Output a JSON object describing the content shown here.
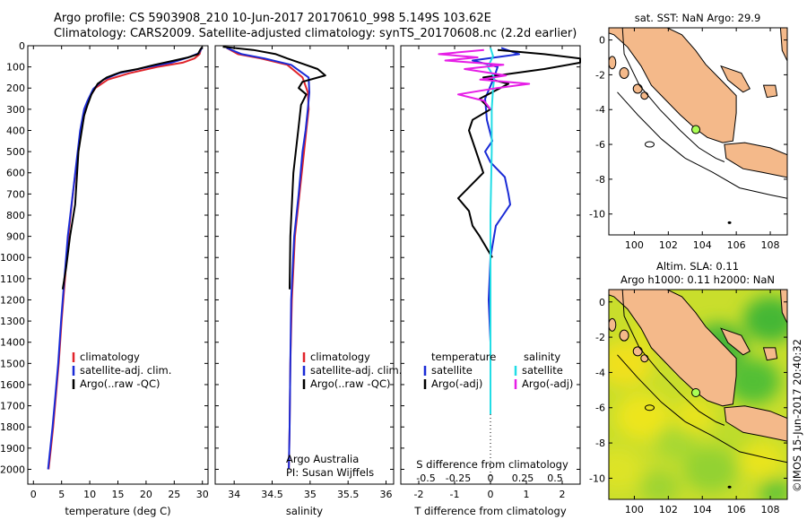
{
  "header": {
    "line1": "Argo profile: CS 5903908_210 10-Jun-2017 20170610_998 5.149S 103.62E",
    "line2": "Climatology: CARS2009. Satellite-adjusted climatology: synTS_20170608.nc (2.2d earlier)"
  },
  "footer": {
    "stamp": "©IMOS 15-Jun-2017 20:40:32"
  },
  "colors": {
    "clim": "#e0242b",
    "sat": "#1a2bd6",
    "argo": "#000000",
    "sal_sat": "#22dde6",
    "sal_argo": "#e61ee6",
    "land": "#f4b98a",
    "ocean_map": "#ffffff"
  },
  "chart_data": [
    {
      "type": "line",
      "name": "temperature",
      "xlabel": "temperature (deg C)",
      "xlim": [
        -1,
        31
      ],
      "ylim": [
        0,
        2070
      ],
      "xticks": [
        "0",
        "5",
        "10",
        "15",
        "20",
        "25",
        "30"
      ],
      "xtick_values": [
        0,
        5,
        10,
        15,
        20,
        25,
        30
      ],
      "yticks": [
        "0",
        "100",
        "200",
        "300",
        "400",
        "500",
        "600",
        "700",
        "800",
        "900",
        "1000",
        "1100",
        "1200",
        "1300",
        "1400",
        "1500",
        "1600",
        "1700",
        "1800",
        "1900",
        "2000"
      ],
      "ytick_values": [
        0,
        100,
        200,
        300,
        400,
        500,
        600,
        700,
        800,
        900,
        1000,
        1100,
        1200,
        1300,
        1400,
        1500,
        1600,
        1700,
        1800,
        1900,
        2000
      ],
      "legend": [
        "climatology",
        "satellite-adj. clim.",
        "Argo(..raw -QC)"
      ],
      "series": [
        {
          "name": "climatology",
          "color": "#e0242b",
          "x": [
            29.8,
            29.5,
            28.6,
            26.5,
            22.0,
            17.0,
            13.2,
            11.0,
            9.8,
            9.2,
            8.5,
            7.7,
            7.0,
            6.2,
            5.6,
            5.0,
            4.5,
            4.0,
            3.5,
            3.1,
            2.7
          ],
          "y": [
            10,
            40,
            60,
            80,
            100,
            130,
            160,
            200,
            250,
            300,
            400,
            550,
            700,
            900,
            1100,
            1300,
            1500,
            1650,
            1800,
            1900,
            2000
          ]
        },
        {
          "name": "satellite-adj. clim.",
          "color": "#1a2bd6",
          "x": [
            29.9,
            29.4,
            27.5,
            24.5,
            19.5,
            15.2,
            12.4,
            10.6,
            9.6,
            9.0,
            8.3,
            7.6,
            6.9,
            6.1,
            5.5,
            4.9,
            4.4,
            3.9,
            3.4,
            3.0,
            2.6
          ],
          "y": [
            10,
            35,
            55,
            80,
            105,
            130,
            160,
            205,
            260,
            300,
            400,
            560,
            720,
            900,
            1100,
            1300,
            1500,
            1650,
            1800,
            1900,
            2000
          ]
        },
        {
          "name": "Argo(..raw -QC)",
          "color": "#000000",
          "x": [
            30.0,
            29.6,
            29.2,
            27.5,
            25.0,
            21.5,
            18.5,
            15.5,
            13.0,
            11.4,
            10.3,
            9.6,
            9.0,
            8.0,
            7.4,
            6.5,
            5.8,
            5.2
          ],
          "y": [
            5,
            20,
            40,
            55,
            70,
            90,
            110,
            125,
            150,
            180,
            230,
            280,
            330,
            500,
            750,
            900,
            1050,
            1150
          ]
        }
      ]
    },
    {
      "type": "line",
      "name": "salinity",
      "xlabel": "salinity",
      "xlim": [
        33.75,
        36.1
      ],
      "ylim": [
        0,
        2070
      ],
      "xticks": [
        "34",
        "34.5",
        "35",
        "35.5",
        "36"
      ],
      "xtick_values": [
        34,
        34.5,
        35,
        35.5,
        36
      ],
      "legend": [
        "climatology",
        "satellite-adj. clim.",
        "Argo(..raw -QC)"
      ],
      "annotations": [
        "Argo Australia",
        "PI: Susan Wijffels"
      ],
      "series": [
        {
          "name": "climatology",
          "color": "#e0242b",
          "x": [
            33.9,
            34.05,
            34.35,
            34.7,
            34.9,
            34.97,
            34.98,
            34.95,
            34.92,
            34.86,
            34.8,
            34.76,
            34.74,
            34.73,
            34.72
          ],
          "y": [
            10,
            40,
            60,
            90,
            150,
            220,
            300,
            400,
            500,
            700,
            900,
            1200,
            1500,
            1800,
            2000
          ]
        },
        {
          "name": "satellite-adj. clim.",
          "color": "#1a2bd6",
          "x": [
            33.9,
            34.1,
            34.4,
            34.75,
            34.98,
            34.99,
            34.97,
            34.94,
            34.9,
            34.85,
            34.79,
            34.75,
            34.74,
            34.73,
            34.72
          ],
          "y": [
            10,
            40,
            60,
            90,
            150,
            220,
            300,
            400,
            500,
            700,
            900,
            1200,
            1500,
            1800,
            2000
          ]
        },
        {
          "name": "Argo(..raw -QC)",
          "color": "#000000",
          "x": [
            33.85,
            34.25,
            34.55,
            34.7,
            34.9,
            35.1,
            35.2,
            34.9,
            34.85,
            34.95,
            34.88,
            34.85,
            34.78,
            34.74,
            34.73
          ],
          "y": [
            5,
            20,
            40,
            60,
            85,
            110,
            140,
            170,
            200,
            230,
            280,
            380,
            600,
            900,
            1150
          ]
        }
      ]
    },
    {
      "type": "line",
      "name": "difference",
      "xlabel": "T difference from climatology",
      "xlabel_top": "S difference from climatology",
      "xlim": [
        -2.5,
        2.5
      ],
      "ylim": [
        0,
        2070
      ],
      "xticks": [
        "-2",
        "-1",
        "0",
        "1",
        "2"
      ],
      "xtick_values": [
        -2,
        -1,
        0,
        1,
        2
      ],
      "xticks_top": [
        "-0.5",
        "-0.25",
        "0",
        "0.25",
        "0.5"
      ],
      "xtick_values_top": [
        -0.5,
        -0.25,
        0,
        0.25,
        0.5
      ],
      "legend": [
        "temperature",
        "satellite",
        "Argo(-adj)",
        "salinity",
        "satellite",
        "Argo(-adj)"
      ],
      "series": [
        {
          "name": "temperature satellite",
          "color": "#1a2bd6",
          "x": [
            0.3,
            0.8,
            -0.5,
            0.2,
            0.1,
            -0.15,
            -0.1,
            0.05,
            -0.15,
            0.0,
            0.4,
            0.5,
            0.55,
            0.35,
            0.15,
            0.0,
            -0.05,
            0.0,
            0.0,
            0.0,
            0.0
          ],
          "y": [
            10,
            40,
            70,
            100,
            150,
            250,
            350,
            450,
            500,
            550,
            620,
            700,
            750,
            800,
            850,
            1000,
            1200,
            1400,
            1600,
            1700,
            1740
          ]
        },
        {
          "name": "temperature Argo(-adj)",
          "color": "#000000",
          "x": [
            0.2,
            1.5,
            2.5,
            2.5,
            1.5,
            -0.2,
            0.5,
            -0.3,
            0.0,
            -0.5,
            -0.6,
            -0.4,
            -0.2,
            -0.9,
            -0.6,
            -0.5,
            -0.3,
            0.05
          ],
          "y": [
            20,
            40,
            60,
            80,
            110,
            150,
            180,
            250,
            300,
            350,
            400,
            500,
            600,
            720,
            780,
            850,
            900,
            1000
          ]
        },
        {
          "name": "salinity satellite",
          "color": "#22dde6",
          "x": [
            0.0,
            0.02,
            -0.02,
            0.03,
            0.02,
            0.01,
            0.01,
            0.0,
            0.0,
            0.0,
            0.0
          ],
          "y": [
            10,
            50,
            100,
            150,
            200,
            300,
            500,
            800,
            1100,
            1400,
            1740
          ]
        },
        {
          "name": "salinity Argo(-adj)",
          "color": "#e61ee6",
          "x": [
            -0.05,
            -0.4,
            -0.1,
            -0.35,
            0.1,
            -0.2,
            0.12,
            -0.08,
            0.3,
            0.05,
            -0.25,
            -0.05,
            0.0
          ],
          "y": [
            20,
            40,
            55,
            70,
            90,
            110,
            140,
            160,
            180,
            200,
            230,
            260,
            300
          ]
        }
      ]
    },
    {
      "type": "map",
      "name": "sst-map",
      "title": "sat. SST: NaN Argo: 29.9",
      "xlim": [
        98.5,
        109
      ],
      "ylim": [
        -11.2,
        0.7
      ],
      "xticks": [
        "100",
        "102",
        "104",
        "106",
        "108"
      ],
      "xtick_values": [
        100,
        102,
        104,
        106,
        108
      ],
      "yticks": [
        "0",
        "-2",
        "-4",
        "-6",
        "-8",
        "-10"
      ],
      "ytick_values": [
        0,
        -2,
        -4,
        -6,
        -8,
        -10
      ],
      "argo_lon": 103.62,
      "argo_lat": -5.149
    },
    {
      "type": "map",
      "name": "sla-map",
      "title_line1": "Altim. SLA: 0.11",
      "title_line2": "Argo h1000: 0.11 h2000: NaN",
      "xlim": [
        98.5,
        109
      ],
      "ylim": [
        -11.2,
        0.7
      ],
      "xticks": [
        "100",
        "102",
        "104",
        "106",
        "108"
      ],
      "xtick_values": [
        100,
        102,
        104,
        106,
        108
      ],
      "yticks": [
        "0",
        "-2",
        "-4",
        "-6",
        "-8",
        "-10"
      ],
      "ytick_values": [
        0,
        -2,
        -4,
        -6,
        -8,
        -10
      ],
      "argo_lon": 103.62,
      "argo_lat": -5.149
    }
  ]
}
